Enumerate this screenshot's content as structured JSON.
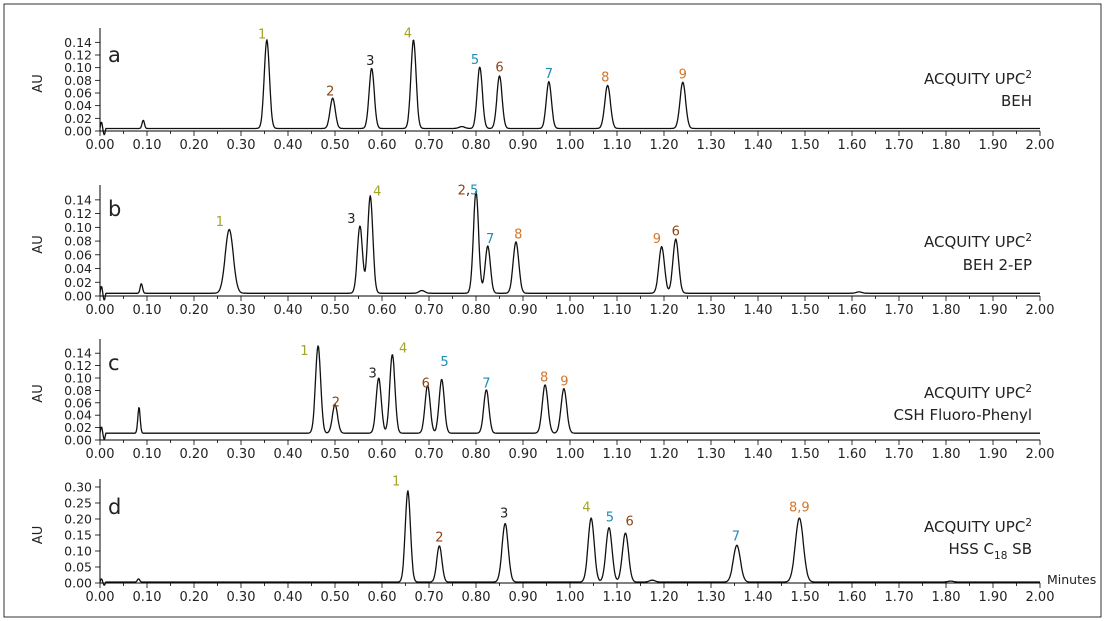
{
  "colors": {
    "yellow": "#a3a526",
    "brown": "#8b4513",
    "black": "#222222",
    "blue": "#1e8db5",
    "orange": "#d2762a"
  },
  "x_axis_label": "Minutes",
  "chart_data": [
    {
      "type": "line",
      "panel_label": "a",
      "ylabel": "AU",
      "yticks": [
        "0.00",
        "0.02",
        "0.04",
        "0.06",
        "0.08",
        "0.10",
        "0.12",
        "0.14"
      ],
      "ylim": [
        0,
        0.15
      ],
      "xlim": [
        0,
        2.0
      ],
      "xticks": [
        "0.00",
        "0.10",
        "0.20",
        "0.30",
        "0.40",
        "0.50",
        "0.60",
        "0.70",
        "0.80",
        "0.90",
        "1.00",
        "1.10",
        "1.20",
        "1.30",
        "1.40",
        "1.50",
        "1.60",
        "1.70",
        "1.80",
        "1.90",
        "2.00"
      ],
      "annotation": {
        "line1": "ACQUITY UPC",
        "sup": "2",
        "line2": "BEH"
      },
      "baseline": 0.004,
      "peaks": [
        {
          "x": 0.092,
          "y": 0.013,
          "w": 0.0025
        },
        {
          "x": 0.355,
          "y": 0.14,
          "w": 0.0055
        },
        {
          "x": 0.495,
          "y": 0.048,
          "w": 0.0055
        },
        {
          "x": 0.578,
          "y": 0.095,
          "w": 0.0055
        },
        {
          "x": 0.667,
          "y": 0.14,
          "w": 0.0055
        },
        {
          "x": 0.77,
          "y": 0.003,
          "w": 0.006
        },
        {
          "x": 0.808,
          "y": 0.097,
          "w": 0.0055
        },
        {
          "x": 0.85,
          "y": 0.083,
          "w": 0.0055
        },
        {
          "x": 0.955,
          "y": 0.074,
          "w": 0.0055
        },
        {
          "x": 1.08,
          "y": 0.068,
          "w": 0.006
        },
        {
          "x": 1.24,
          "y": 0.073,
          "w": 0.006
        }
      ],
      "labels": [
        {
          "parts": [
            {
              "t": "1",
              "c": "yellow"
            }
          ],
          "x": 0.345,
          "y": 0.146
        },
        {
          "parts": [
            {
              "t": "2",
              "c": "brown"
            }
          ],
          "x": 0.49,
          "y": 0.056
        },
        {
          "parts": [
            {
              "t": "3",
              "c": "black"
            }
          ],
          "x": 0.575,
          "y": 0.104
        },
        {
          "parts": [
            {
              "t": "4",
              "c": "yellow"
            }
          ],
          "x": 0.655,
          "y": 0.148
        },
        {
          "parts": [
            {
              "t": "5",
              "c": "blue"
            }
          ],
          "x": 0.798,
          "y": 0.106
        },
        {
          "parts": [
            {
              "t": "6",
              "c": "brown"
            }
          ],
          "x": 0.85,
          "y": 0.094
        },
        {
          "parts": [
            {
              "t": "7",
              "c": "blue"
            }
          ],
          "x": 0.955,
          "y": 0.084
        },
        {
          "parts": [
            {
              "t": "8",
              "c": "orange"
            }
          ],
          "x": 1.075,
          "y": 0.078
        },
        {
          "parts": [
            {
              "t": "9",
              "c": "orange"
            }
          ],
          "x": 1.24,
          "y": 0.083
        }
      ]
    },
    {
      "type": "line",
      "panel_label": "b",
      "ylabel": "AU",
      "yticks": [
        "0.00",
        "0.02",
        "0.04",
        "0.06",
        "0.08",
        "0.10",
        "0.12",
        "0.14"
      ],
      "ylim": [
        0,
        0.15
      ],
      "xlim": [
        0,
        2.0
      ],
      "xticks": [
        "0.00",
        "0.10",
        "0.20",
        "0.30",
        "0.40",
        "0.50",
        "0.60",
        "0.70",
        "0.80",
        "0.90",
        "1.00",
        "1.10",
        "1.20",
        "1.30",
        "1.40",
        "1.50",
        "1.60",
        "1.70",
        "1.80",
        "1.90",
        "2.00"
      ],
      "annotation": {
        "line1": "ACQUITY UPC",
        "sup": "2",
        "line2": "BEH 2-EP"
      },
      "baseline": 0.004,
      "peaks": [
        {
          "x": 0.088,
          "y": 0.014,
          "w": 0.0025
        },
        {
          "x": 0.275,
          "y": 0.093,
          "w": 0.0085
        },
        {
          "x": 0.553,
          "y": 0.098,
          "w": 0.0055
        },
        {
          "x": 0.575,
          "y": 0.142,
          "w": 0.0055
        },
        {
          "x": 0.685,
          "y": 0.004,
          "w": 0.006
        },
        {
          "x": 0.8,
          "y": 0.148,
          "w": 0.0055
        },
        {
          "x": 0.825,
          "y": 0.069,
          "w": 0.0055
        },
        {
          "x": 0.885,
          "y": 0.075,
          "w": 0.006
        },
        {
          "x": 1.195,
          "y": 0.068,
          "w": 0.006
        },
        {
          "x": 1.225,
          "y": 0.079,
          "w": 0.006
        },
        {
          "x": 1.615,
          "y": 0.002,
          "w": 0.006
        }
      ],
      "labels": [
        {
          "parts": [
            {
              "t": "1",
              "c": "yellow"
            }
          ],
          "x": 0.255,
          "y": 0.102
        },
        {
          "parts": [
            {
              "t": "3",
              "c": "black"
            }
          ],
          "x": 0.535,
          "y": 0.106
        },
        {
          "parts": [
            {
              "t": "4",
              "c": "yellow"
            }
          ],
          "x": 0.59,
          "y": 0.146
        },
        {
          "parts": [
            {
              "t": "2",
              "c": "brown"
            },
            {
              "t": ",",
              "c": "black"
            },
            {
              "t": "5",
              "c": "blue"
            }
          ],
          "x": 0.783,
          "y": 0.148
        },
        {
          "parts": [
            {
              "t": "7",
              "c": "blue"
            }
          ],
          "x": 0.83,
          "y": 0.077
        },
        {
          "parts": [
            {
              "t": "8",
              "c": "orange"
            }
          ],
          "x": 0.89,
          "y": 0.084
        },
        {
          "parts": [
            {
              "t": "9",
              "c": "orange"
            }
          ],
          "x": 1.185,
          "y": 0.077
        },
        {
          "parts": [
            {
              "t": "6",
              "c": "brown"
            }
          ],
          "x": 1.225,
          "y": 0.088
        }
      ]
    },
    {
      "type": "line",
      "panel_label": "c",
      "ylabel": "AU",
      "yticks": [
        "0.00",
        "0.02",
        "0.04",
        "0.06",
        "0.08",
        "0.10",
        "0.12",
        "0.14"
      ],
      "ylim": [
        0,
        0.15
      ],
      "xlim": [
        0,
        2.0
      ],
      "xticks": [
        "0.00",
        "0.10",
        "0.20",
        "0.30",
        "0.40",
        "0.50",
        "0.60",
        "0.70",
        "0.80",
        "0.90",
        "1.00",
        "1.10",
        "1.20",
        "1.30",
        "1.40",
        "1.50",
        "1.60",
        "1.70",
        "1.80",
        "1.90",
        "2.00"
      ],
      "annotation": {
        "line1": "ACQUITY UPC",
        "sup": "2",
        "line2": "CSH Fluoro-Phenyl"
      },
      "baseline": 0.011,
      "peaks": [
        {
          "x": 0.083,
          "y": 0.042,
          "w": 0.0025
        },
        {
          "x": 0.464,
          "y": 0.141,
          "w": 0.0055
        },
        {
          "x": 0.5,
          "y": 0.046,
          "w": 0.0055
        },
        {
          "x": 0.593,
          "y": 0.089,
          "w": 0.0055
        },
        {
          "x": 0.622,
          "y": 0.127,
          "w": 0.0055
        },
        {
          "x": 0.697,
          "y": 0.077,
          "w": 0.0055
        },
        {
          "x": 0.727,
          "y": 0.087,
          "w": 0.0055
        },
        {
          "x": 0.822,
          "y": 0.07,
          "w": 0.0055
        },
        {
          "x": 0.947,
          "y": 0.078,
          "w": 0.006
        },
        {
          "x": 0.987,
          "y": 0.072,
          "w": 0.006
        }
      ],
      "labels": [
        {
          "parts": [
            {
              "t": "1",
              "c": "yellow"
            }
          ],
          "x": 0.435,
          "y": 0.137
        },
        {
          "parts": [
            {
              "t": "2",
              "c": "brown"
            }
          ],
          "x": 0.502,
          "y": 0.054
        },
        {
          "parts": [
            {
              "t": "3",
              "c": "black"
            }
          ],
          "x": 0.58,
          "y": 0.101
        },
        {
          "parts": [
            {
              "t": "4",
              "c": "yellow"
            }
          ],
          "x": 0.645,
          "y": 0.141
        },
        {
          "parts": [
            {
              "t": "6",
              "c": "brown"
            }
          ],
          "x": 0.693,
          "y": 0.085
        },
        {
          "parts": [
            {
              "t": "5",
              "c": "blue"
            }
          ],
          "x": 0.733,
          "y": 0.119
        },
        {
          "parts": [
            {
              "t": "7",
              "c": "blue"
            }
          ],
          "x": 0.822,
          "y": 0.085
        },
        {
          "parts": [
            {
              "t": "8",
              "c": "orange"
            }
          ],
          "x": 0.945,
          "y": 0.094
        },
        {
          "parts": [
            {
              "t": "9",
              "c": "orange"
            }
          ],
          "x": 0.988,
          "y": 0.088
        }
      ]
    },
    {
      "type": "line",
      "panel_label": "d",
      "ylabel": "AU",
      "yticks": [
        "0.00",
        "0.05",
        "0.10",
        "0.15",
        "0.20",
        "0.25",
        "0.30"
      ],
      "ylim": [
        0,
        0.3
      ],
      "xlim": [
        0,
        2.0
      ],
      "xticks": [
        "0.00",
        "0.10",
        "0.20",
        "0.30",
        "0.40",
        "0.50",
        "0.60",
        "0.70",
        "0.80",
        "0.90",
        "1.00",
        "1.10",
        "1.20",
        "1.30",
        "1.40",
        "1.50",
        "1.60",
        "1.70",
        "1.80",
        "1.90",
        "2.00"
      ],
      "annotation": {
        "line1": "ACQUITY UPC",
        "sup": "2",
        "line2": "HSS C",
        "sub": "18",
        "line2b": " SB"
      },
      "baseline": 0.003,
      "peaks": [
        {
          "x": 0.082,
          "y": 0.01,
          "w": 0.0025
        },
        {
          "x": 0.655,
          "y": 0.285,
          "w": 0.0055
        },
        {
          "x": 0.722,
          "y": 0.113,
          "w": 0.0055
        },
        {
          "x": 0.862,
          "y": 0.183,
          "w": 0.0065
        },
        {
          "x": 1.045,
          "y": 0.2,
          "w": 0.0065
        },
        {
          "x": 1.083,
          "y": 0.17,
          "w": 0.0065
        },
        {
          "x": 1.118,
          "y": 0.153,
          "w": 0.0065
        },
        {
          "x": 1.175,
          "y": 0.006,
          "w": 0.006
        },
        {
          "x": 1.355,
          "y": 0.115,
          "w": 0.0075
        },
        {
          "x": 1.488,
          "y": 0.2,
          "w": 0.0085
        },
        {
          "x": 1.81,
          "y": 0.003,
          "w": 0.006
        }
      ],
      "labels": [
        {
          "parts": [
            {
              "t": "1",
              "c": "yellow"
            }
          ],
          "x": 0.63,
          "y": 0.305
        },
        {
          "parts": [
            {
              "t": "2",
              "c": "brown"
            }
          ],
          "x": 0.722,
          "y": 0.13
        },
        {
          "parts": [
            {
              "t": "3",
              "c": "black"
            }
          ],
          "x": 0.86,
          "y": 0.205
        },
        {
          "parts": [
            {
              "t": "4",
              "c": "yellow"
            }
          ],
          "x": 1.035,
          "y": 0.223
        },
        {
          "parts": [
            {
              "t": "5",
              "c": "blue"
            }
          ],
          "x": 1.085,
          "y": 0.192
        },
        {
          "parts": [
            {
              "t": "6",
              "c": "brown"
            }
          ],
          "x": 1.127,
          "y": 0.18
        },
        {
          "parts": [
            {
              "t": "7",
              "c": "blue"
            }
          ],
          "x": 1.353,
          "y": 0.133
        },
        {
          "parts": [
            {
              "t": "8",
              "c": "orange"
            },
            {
              "t": ",",
              "c": "orange"
            },
            {
              "t": "9",
              "c": "orange"
            }
          ],
          "x": 1.488,
          "y": 0.223
        }
      ]
    }
  ]
}
